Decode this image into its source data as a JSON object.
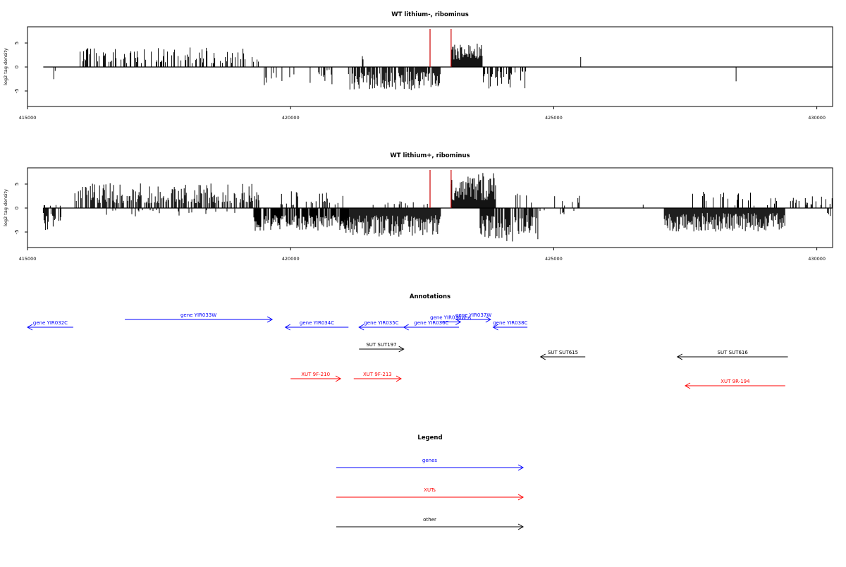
{
  "chart_data": [
    {
      "type": "bar",
      "title": "WT lithium-, ribominus",
      "ylabel": "log2 tag density",
      "xlim": [
        415000,
        430300
      ],
      "ylim": [
        -7.5,
        7.5
      ],
      "x_ticks": [
        415000,
        420000,
        425000,
        430000
      ],
      "x_tick_labels": [
        "415000",
        "420000",
        "425000",
        "430000"
      ],
      "y_ticks": [
        -5,
        0,
        5
      ],
      "y_tick_labels": [
        "-5",
        "0",
        "5"
      ],
      "baseline": {
        "x": [
          415300,
          430300
        ],
        "y": 0
      },
      "markers": [
        422650,
        423050
      ],
      "segments": [
        {
          "x": [
            415500,
            415540
          ],
          "sign": -1,
          "min": 0.8,
          "max": 3.0,
          "density": 1.0
        },
        {
          "x": [
            416000,
            419500
          ],
          "sign": 1,
          "min": 0.8,
          "max": 4.2,
          "density": 1.0
        },
        {
          "x": [
            419500,
            420800
          ],
          "sign": -1,
          "min": 0.5,
          "max": 4.0,
          "density": 0.5
        },
        {
          "x": [
            421100,
            422850
          ],
          "sign": -1,
          "min": 1.0,
          "max": 4.9,
          "density": 2.5
        },
        {
          "x": [
            421350,
            421400
          ],
          "sign": 1,
          "min": 1.5,
          "max": 2.5,
          "density": 1.0
        },
        {
          "x": [
            423050,
            423650
          ],
          "sign": 1,
          "min": 1.5,
          "max": 5.0,
          "density": 3.0
        },
        {
          "x": [
            423650,
            424500
          ],
          "sign": -1,
          "min": 0.8,
          "max": 4.5,
          "density": 1.2
        },
        {
          "x": [
            425500,
            425560
          ],
          "sign": 1,
          "min": 2.0,
          "max": 2.2,
          "density": 1.0
        },
        {
          "x": [
            427300,
            429500
          ],
          "sign": -1,
          "min": 1.5,
          "max": 3.8,
          "density": 0.05
        },
        {
          "x": [
            427500,
            427560
          ],
          "sign": 1,
          "min": 0.7,
          "max": 0.9,
          "density": 1.0
        }
      ]
    },
    {
      "type": "bar",
      "title": "WT lithium+, ribominus",
      "ylabel": "log2 tag density",
      "xlim": [
        415000,
        430300
      ],
      "ylim": [
        -7.5,
        7.5
      ],
      "x_ticks": [
        415000,
        420000,
        425000,
        430000
      ],
      "x_tick_labels": [
        "415000",
        "420000",
        "425000",
        "430000"
      ],
      "y_ticks": [
        -5,
        0,
        5
      ],
      "y_tick_labels": [
        "-5",
        "0",
        "5"
      ],
      "baseline": {
        "x": [
          415300,
          430300
        ],
        "y": 0
      },
      "markers": [
        422650,
        423050
      ],
      "segments": [
        {
          "x": [
            415300,
            415650
          ],
          "sign": -1,
          "min": 1.0,
          "max": 5.2,
          "density": 2.0
        },
        {
          "x": [
            415300,
            415650
          ],
          "sign": 1,
          "min": 0.2,
          "max": 0.7,
          "density": 0.8
        },
        {
          "x": [
            415900,
            419400
          ],
          "sign": 1,
          "min": 1.0,
          "max": 5.2,
          "density": 2.0
        },
        {
          "x": [
            416500,
            419000
          ],
          "sign": -1,
          "min": 0.4,
          "max": 1.8,
          "density": 0.4
        },
        {
          "x": [
            419300,
            421100
          ],
          "sign": -1,
          "min": 1.5,
          "max": 4.8,
          "density": 2.5
        },
        {
          "x": [
            419800,
            421000
          ],
          "sign": 1,
          "min": 0.5,
          "max": 3.5,
          "density": 0.7
        },
        {
          "x": [
            421000,
            422850
          ],
          "sign": -1,
          "min": 1.5,
          "max": 6.0,
          "density": 3.0
        },
        {
          "x": [
            421500,
            422600
          ],
          "sign": 1,
          "min": 0.5,
          "max": 2.0,
          "density": 0.5
        },
        {
          "x": [
            423050,
            423900
          ],
          "sign": 1,
          "min": 1.5,
          "max": 7.5,
          "density": 3.0
        },
        {
          "x": [
            423600,
            424700
          ],
          "sign": -1,
          "min": 1.5,
          "max": 7.0,
          "density": 2.5
        },
        {
          "x": [
            424200,
            425600
          ],
          "sign": 1,
          "min": 0.5,
          "max": 3.0,
          "density": 0.3
        },
        {
          "x": [
            424700,
            425500
          ],
          "sign": -1,
          "min": 0.3,
          "max": 1.3,
          "density": 0.3
        },
        {
          "x": [
            426700,
            426760
          ],
          "sign": 1,
          "min": 0.5,
          "max": 0.7,
          "density": 1.0
        },
        {
          "x": [
            427100,
            429400
          ],
          "sign": -1,
          "min": 1.0,
          "max": 5.0,
          "density": 3.0
        },
        {
          "x": [
            427600,
            429400
          ],
          "sign": 1,
          "min": 0.5,
          "max": 3.5,
          "density": 0.5
        },
        {
          "x": [
            429500,
            430300
          ],
          "sign": 1,
          "min": 0.5,
          "max": 2.5,
          "density": 1.0
        },
        {
          "x": [
            430200,
            430280
          ],
          "sign": -1,
          "min": 1.0,
          "max": 2.5,
          "density": 1.0
        }
      ]
    }
  ],
  "annotations": {
    "title": "Annotations",
    "items": [
      {
        "label": "gene YIR032C",
        "x1": 415870,
        "x2": 415000,
        "row": 1,
        "color": "#0000ff"
      },
      {
        "label": "gene YIR033W",
        "x1": 416850,
        "x2": 419650,
        "row": 0,
        "color": "#0000ff"
      },
      {
        "label": "gene YIR034C",
        "x1": 421100,
        "x2": 419900,
        "row": 1,
        "color": "#0000ff"
      },
      {
        "label": "gene YIR035C",
        "x1": 422150,
        "x2": 421300,
        "row": 1,
        "color": "#0000ff"
      },
      {
        "label": "gene YIR036C",
        "x1": 423200,
        "x2": 422150,
        "row": 1,
        "color": "#0000ff"
      },
      {
        "label": "gene YIR036W-A",
        "x1": 422850,
        "x2": 423230,
        "row": 0.5,
        "color": "#0000ff"
      },
      {
        "label": "gene YIR037W",
        "x1": 423150,
        "x2": 423800,
        "row": 0,
        "color": "#0000ff"
      },
      {
        "label": "gene YIR038C",
        "x1": 424500,
        "x2": 423850,
        "row": 1,
        "color": "#0000ff"
      },
      {
        "label": "SUT SUT197",
        "x1": 421300,
        "x2": 422150,
        "row": 2,
        "color": "#000000"
      },
      {
        "label": "SUT SUT615",
        "x1": 425600,
        "x2": 424750,
        "row": 3,
        "color": "#000000"
      },
      {
        "label": "SUT SUT616",
        "x1": 429450,
        "x2": 427350,
        "row": 3,
        "color": "#000000"
      },
      {
        "label": "XUT 9F-210",
        "x1": 420000,
        "x2": 420950,
        "row": 4,
        "color": "#ff0000"
      },
      {
        "label": "XUT 9F-213",
        "x1": 421200,
        "x2": 422100,
        "row": 4,
        "color": "#ff0000"
      },
      {
        "label": "XUT 9R-194",
        "x1": 429400,
        "x2": 427500,
        "row": 5,
        "color": "#ff0000"
      }
    ]
  },
  "legend": {
    "title": "Legend",
    "items": [
      {
        "label": "genes",
        "color": "#0000ff"
      },
      {
        "label": "XUTs",
        "color": "#ff0000"
      },
      {
        "label": "other",
        "color": "#000000"
      }
    ]
  },
  "colors": {
    "axis": "#000000",
    "marker": "#cc0000",
    "bars": "#000000"
  }
}
